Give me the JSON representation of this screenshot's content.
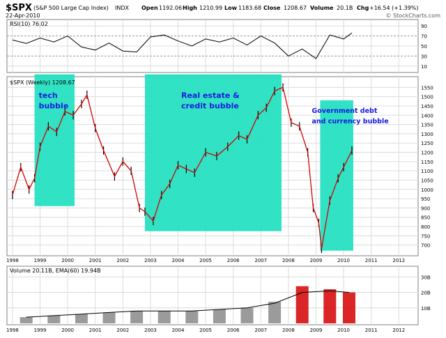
{
  "header": {
    "symbol": "$SPX",
    "name": "(S&P 500 Large Cap Index)",
    "exchange": "INDX",
    "date": "22-Apr-2010",
    "open_label": "Open",
    "open": "1192.06",
    "high_label": "High",
    "high": "1210.99",
    "low_label": "Low",
    "low": "1183.68",
    "close_label": "Close",
    "close": "1208.67",
    "volume_label": "Volume",
    "volume": "20.1B",
    "chg_label": "Chg",
    "chg": "+16.54 (+1.39%)",
    "watermark": "© StockCharts.com"
  },
  "colors": {
    "price_line": "#d40000",
    "price_bar": "#000000",
    "highlight": "#20e0c0",
    "annotation_text": "#1a1ae0",
    "rsi_line": "#000000",
    "rsi_fill": "#2f8f2f",
    "volume_bar": "#8a8a8a",
    "volume_bar_red": "#d40000",
    "panel_border": "#808080",
    "grid": "#dcdcdc"
  },
  "chart_data": [
    {
      "type": "line",
      "panel": "rsi",
      "label": "RSI(10) 76.02",
      "yticks": [
        10,
        30,
        50,
        70,
        90
      ],
      "ylim": [
        0,
        100
      ],
      "x": [
        1998.0,
        1998.5,
        1999.0,
        1999.5,
        2000.0,
        2000.5,
        2001.0,
        2001.5,
        2002.0,
        2002.5,
        2003.0,
        2003.5,
        2004.0,
        2004.5,
        2005.0,
        2005.5,
        2006.0,
        2006.5,
        2007.0,
        2007.5,
        2008.0,
        2008.5,
        2009.0,
        2009.5,
        2010.0,
        2010.3
      ],
      "values": [
        62,
        55,
        66,
        58,
        70,
        48,
        42,
        56,
        40,
        38,
        68,
        72,
        60,
        50,
        64,
        58,
        66,
        52,
        70,
        56,
        30,
        44,
        25,
        72,
        64,
        76
      ]
    },
    {
      "type": "line",
      "panel": "price",
      "label": "$SPX (Weekly) 1208.67",
      "yticks": [
        700,
        750,
        800,
        850,
        900,
        950,
        1000,
        1050,
        1100,
        1150,
        1200,
        1250,
        1300,
        1350,
        1400,
        1450,
        1500,
        1550
      ],
      "ylim": [
        650,
        1600
      ],
      "xticks": [
        "1998",
        "1999",
        "2000",
        "2001",
        "2002",
        "2003",
        "2004",
        "2005",
        "2006",
        "2007",
        "2008",
        "2009",
        "2010",
        "2011",
        "2012"
      ],
      "x": [
        1998.0,
        1998.3,
        1998.6,
        1998.8,
        1999.0,
        1999.3,
        1999.6,
        1999.9,
        2000.2,
        2000.5,
        2000.7,
        2001.0,
        2001.3,
        2001.7,
        2002.0,
        2002.3,
        2002.6,
        2002.8,
        2003.1,
        2003.4,
        2003.7,
        2004.0,
        2004.3,
        2004.6,
        2005.0,
        2005.4,
        2005.8,
        2006.2,
        2006.5,
        2006.9,
        2007.2,
        2007.5,
        2007.8,
        2008.1,
        2008.4,
        2008.7,
        2008.9,
        2009.1,
        2009.2,
        2009.5,
        2009.8,
        2010.0,
        2010.3
      ],
      "values": [
        970,
        1120,
        1000,
        1060,
        1230,
        1340,
        1310,
        1420,
        1400,
        1460,
        1510,
        1330,
        1210,
        1070,
        1150,
        1100,
        900,
        880,
        830,
        970,
        1030,
        1130,
        1110,
        1090,
        1200,
        1180,
        1230,
        1290,
        1270,
        1400,
        1440,
        1530,
        1550,
        1360,
        1340,
        1200,
        900,
        820,
        680,
        940,
        1060,
        1120,
        1210
      ]
    },
    {
      "type": "bar",
      "panel": "volume",
      "label": "Volume 20.11B, EMA(60) 19.94B",
      "yticks": [
        "10B",
        "20B",
        "30B"
      ],
      "ylim": [
        0,
        36
      ],
      "x": [
        1998.5,
        1999.5,
        2000.5,
        2001.5,
        2002.5,
        2003.5,
        2004.5,
        2005.5,
        2006.5,
        2007.5,
        2008.5,
        2009.5,
        2010.2
      ],
      "values": [
        4,
        5,
        6,
        7,
        8,
        8,
        8,
        9,
        10,
        14,
        24,
        22,
        20
      ],
      "ema": [
        4,
        5,
        6,
        7,
        8,
        8,
        8,
        9,
        10,
        13,
        20,
        21,
        20
      ]
    }
  ],
  "annotations": [
    {
      "lines": [
        "tech",
        "bubble"
      ],
      "x0": 1998.8,
      "x1": 2000.25,
      "y0": 910,
      "y1": 1620
    },
    {
      "lines": [
        "Real estate &",
        "credit bubble"
      ],
      "x0": 2002.8,
      "x1": 2007.75,
      "y0": 775,
      "y1": 1620
    },
    {
      "lines": [
        "Government debt",
        "and currency bubble"
      ],
      "x0": 2009.15,
      "x1": 2010.35,
      "y0": 670,
      "y1": 1480
    }
  ]
}
